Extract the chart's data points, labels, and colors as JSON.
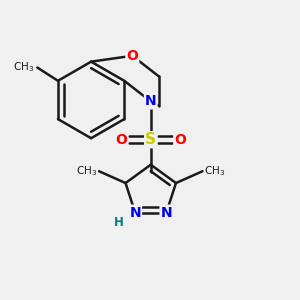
{
  "bg_color": "#f0f0f0",
  "bond_color": "#1a1a1a",
  "bond_width": 1.8,
  "figsize": [
    3.0,
    3.0
  ],
  "dpi": 100,
  "colors": {
    "O": "#ff0000",
    "N": "#0000ee",
    "S": "#cccc00",
    "H": "#008080",
    "C": "#1a1a1a"
  }
}
